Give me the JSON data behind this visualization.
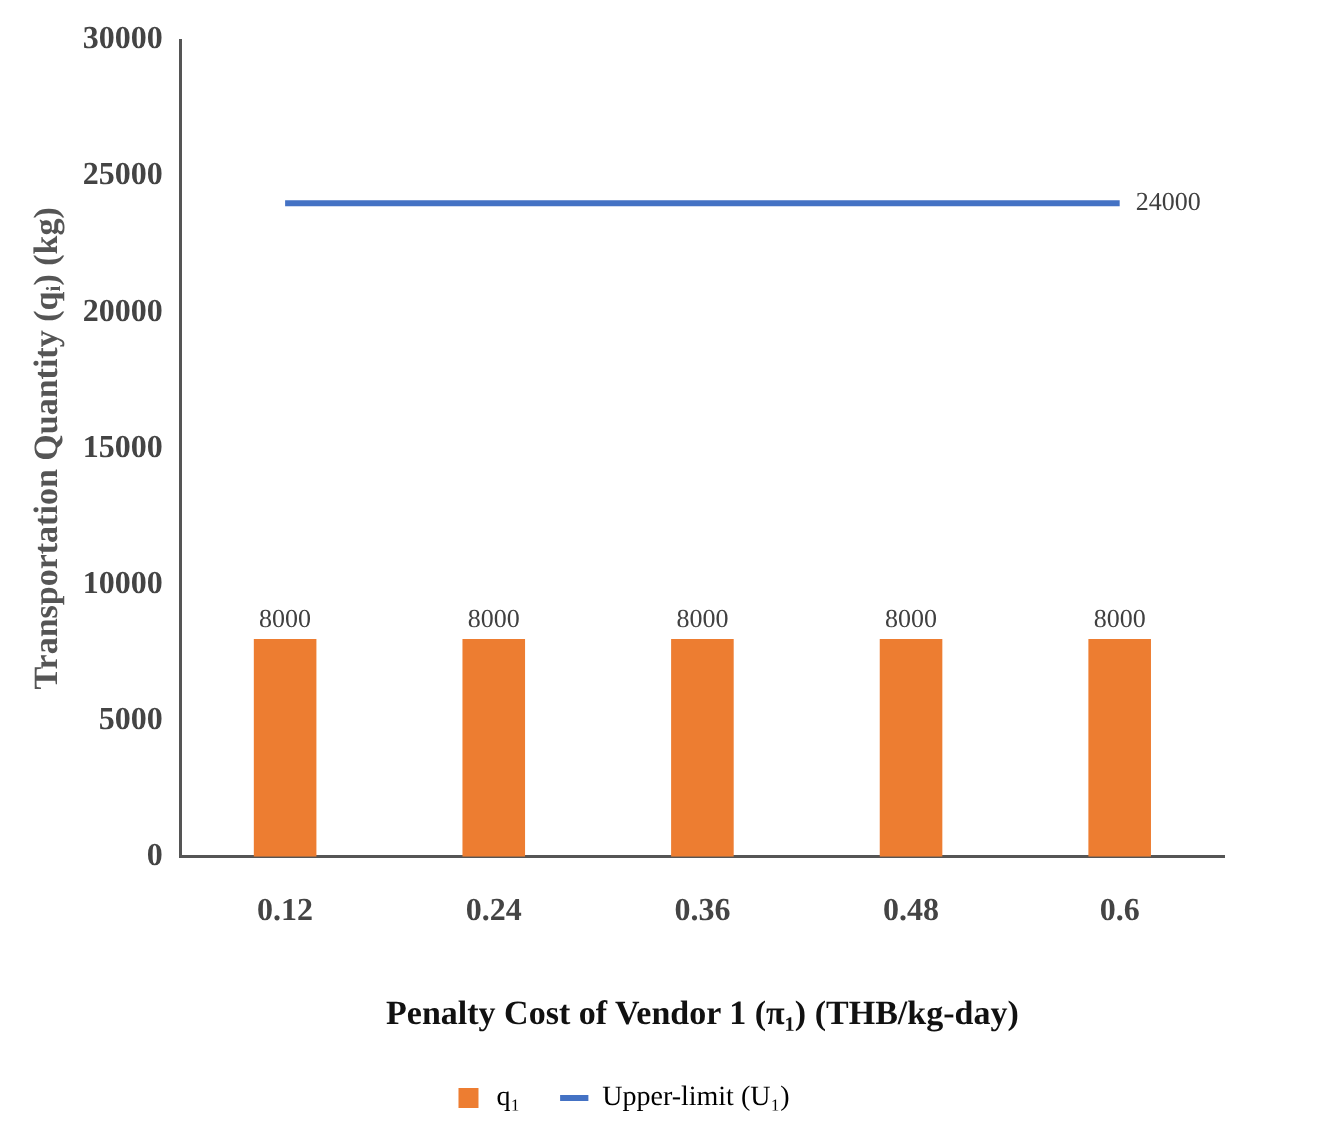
{
  "chart_data": {
    "type": "bar",
    "xlabel": "Penalty Cost of Vendor 1 (π₁) (THB/kg-day)",
    "ylabel": "Transportation Quantity (qᵢ) (kg)",
    "categories": [
      "0.12",
      "0.24",
      "0.36",
      "0.48",
      "0.6"
    ],
    "series": [
      {
        "name": "q₁",
        "color": "#ed7d31",
        "values": [
          8000,
          8000,
          8000,
          8000,
          8000
        ],
        "value_labels": [
          "8000",
          "8000",
          "8000",
          "8000",
          "8000"
        ]
      },
      {
        "name": "Upper-limit (U₁)",
        "type": "line",
        "color": "#4472c4",
        "values": [
          24000,
          24000,
          24000,
          24000,
          24000
        ],
        "value_labels": [
          null,
          null,
          null,
          null,
          "24000"
        ]
      }
    ],
    "ylim": [
      0,
      30000
    ],
    "yticks": [
      0,
      5000,
      10000,
      15000,
      20000,
      25000,
      30000
    ],
    "grid": false,
    "legend": "bottom",
    "marker": "none"
  }
}
